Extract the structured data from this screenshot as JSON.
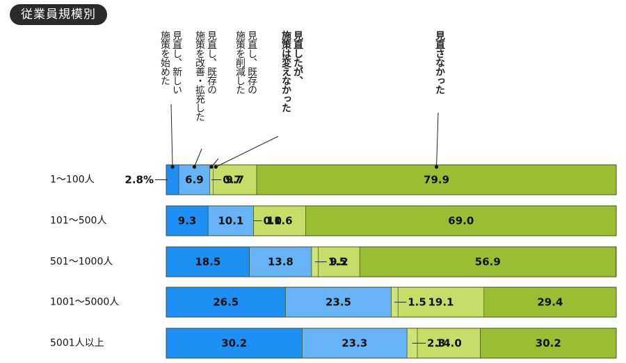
{
  "title": "従業員規模別",
  "colors": [
    "#1e8ff5",
    "#66b3f7",
    "#cde37a",
    "#c6dd68",
    "#9abd33"
  ],
  "chart_data": {
    "type": "bar",
    "orientation": "horizontal",
    "stacked": true,
    "unit": "%",
    "xlim": [
      0,
      100
    ],
    "grid": false,
    "categories": [
      "1〜100人",
      "101〜500人",
      "501〜1000人",
      "1001〜5000人",
      "5001人以上"
    ],
    "series": [
      {
        "name": "見直し、新しい施策を始めた",
        "values": [
          2.8,
          9.3,
          18.5,
          26.5,
          30.2
        ]
      },
      {
        "name": "見直し、既存の施策を改善・拡充した",
        "values": [
          6.9,
          10.1,
          13.8,
          23.5,
          23.3
        ]
      },
      {
        "name": "見直し、既存の施策を削減した",
        "values": [
          0.7,
          0.0,
          1.5,
          1.5,
          2.3
        ]
      },
      {
        "name": "見直したが、施策は変えなかった",
        "values": [
          9.7,
          11.6,
          9.2,
          19.1,
          14.0
        ]
      },
      {
        "name": "見直さなかった",
        "values": [
          79.9,
          69.0,
          56.9,
          29.4,
          30.2
        ]
      }
    ]
  }
}
